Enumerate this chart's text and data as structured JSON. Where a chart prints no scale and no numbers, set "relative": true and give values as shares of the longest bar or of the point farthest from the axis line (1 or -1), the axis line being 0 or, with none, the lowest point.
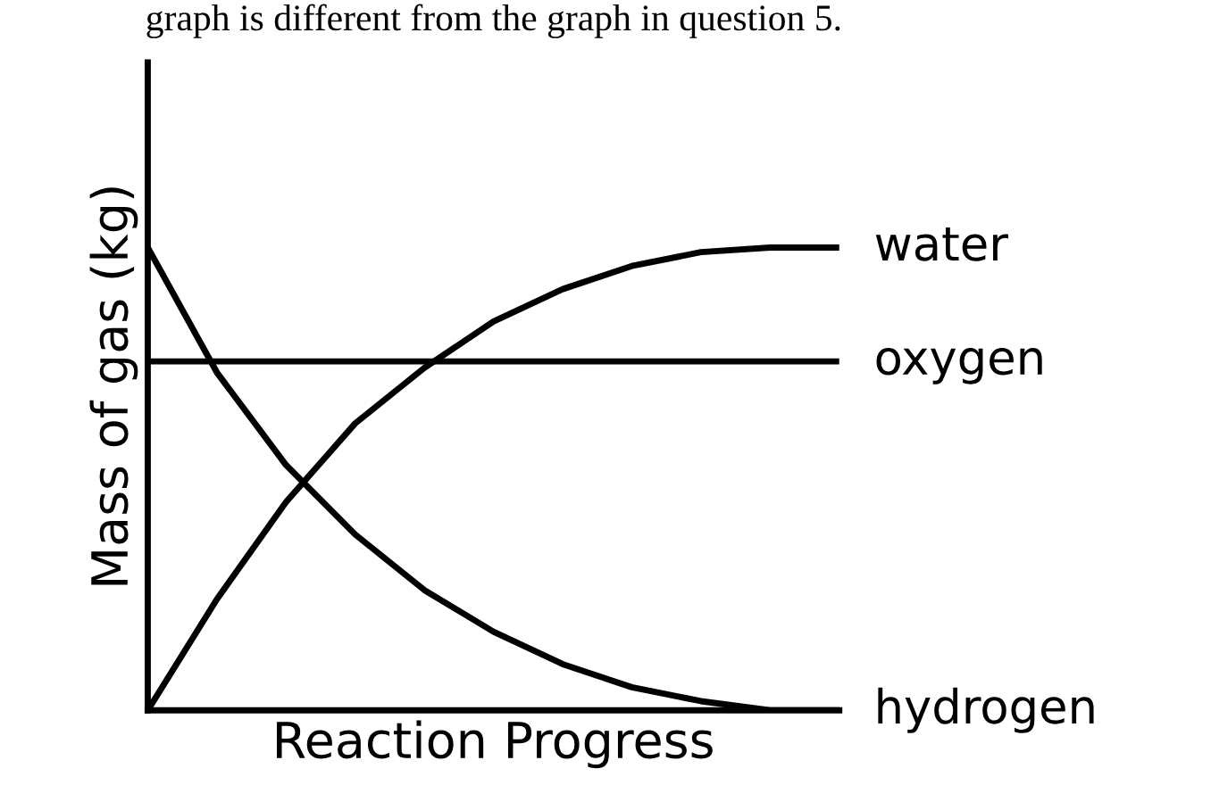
{
  "chart_data": {
    "type": "line",
    "relative": true,
    "xlabel": "Reaction Progress",
    "ylabel": "Mass of gas (kg)",
    "annotations": [
      "graph is different from the graph in question 5."
    ],
    "categories": [
      null,
      null,
      null,
      null,
      null,
      null,
      null,
      null,
      null,
      null,
      null
    ],
    "series": [
      {
        "name": "water",
        "color": "#000000",
        "values": [
          0,
          0.24,
          0.45,
          0.62,
          0.74,
          0.84,
          0.91,
          0.96,
          0.99,
          1.0,
          1.0
        ]
      },
      {
        "name": "oxygen",
        "color": "#000000",
        "values": [
          0.754,
          0.754,
          0.754,
          0.754,
          0.754,
          0.754,
          0.754,
          0.754,
          0.754,
          0.754,
          0.754
        ]
      },
      {
        "name": "hydrogen",
        "color": "#000000",
        "values": [
          1.0,
          0.73,
          0.53,
          0.38,
          0.26,
          0.17,
          0.1,
          0.05,
          0.02,
          0.0,
          0.0
        ]
      }
    ],
    "legend": false,
    "marker": "none",
    "line_style": "solid"
  }
}
